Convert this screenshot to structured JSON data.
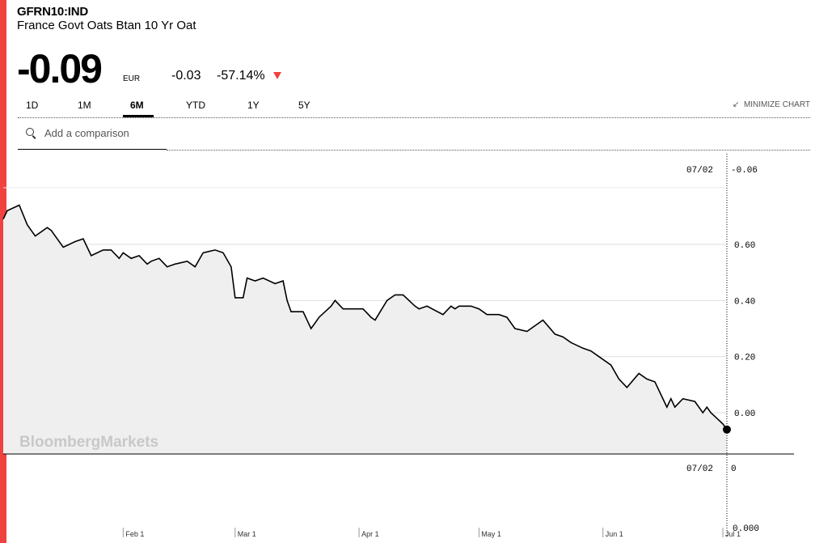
{
  "header": {
    "ticker": "GFRN10:IND",
    "name": "France Govt Oats Btan 10 Yr Oat",
    "price": "-0.09",
    "currency": "EUR",
    "change": "-0.03",
    "change_pct": "-57.14%"
  },
  "tabs": [
    {
      "label": "1D",
      "active": false
    },
    {
      "label": "1M",
      "active": false
    },
    {
      "label": "6M",
      "active": true
    },
    {
      "label": "YTD",
      "active": false
    },
    {
      "label": "1Y",
      "active": false
    },
    {
      "label": "5Y",
      "active": false
    }
  ],
  "minimize_label": "MINIMIZE CHART",
  "compare_placeholder": "Add a comparison",
  "watermark": "BloombergMarkets",
  "colors": {
    "accent": "#f0423f",
    "area_fill": "#efefef",
    "line": "#000000"
  },
  "chart_data": {
    "type": "area",
    "ylim": [
      -0.1,
      0.8
    ],
    "yticks": [
      "0.60",
      "0.40",
      "0.20",
      "0.00"
    ],
    "xticks": [
      "Feb 1",
      "Mar 1",
      "Apr 1",
      "May 1",
      "Jun 1",
      "Jul 1"
    ],
    "crosshair": {
      "date_label": "07/02",
      "value_label": "-0.06"
    },
    "volume": {
      "date_label": "07/02",
      "value_label": "0",
      "axis_label": "0.000"
    },
    "series": [
      {
        "x": [
          "Jan 2",
          "Jan 3",
          "Jan 6",
          "Jan 8",
          "Jan 9",
          "Jan 10",
          "Jan 13",
          "Jan 14",
          "Jan 17",
          "Jan 20",
          "Jan 22",
          "Jan 24",
          "Jan 27",
          "Jan 29",
          "Jan 31",
          "Feb 1",
          "Feb 3",
          "Feb 5",
          "Feb 7",
          "Feb 8",
          "Feb 10",
          "Feb 12",
          "Feb 14",
          "Feb 17",
          "Feb 19",
          "Feb 21",
          "Feb 24",
          "Feb 26",
          "Feb 28",
          "Mar 1",
          "Mar 3",
          "Mar 4",
          "Mar 6",
          "Mar 8",
          "Mar 11",
          "Mar 13",
          "Mar 14",
          "Mar 15",
          "Mar 18",
          "Mar 20",
          "Mar 21",
          "Mar 22",
          "Mar 25",
          "Mar 26",
          "Mar 28",
          "Apr 1",
          "Apr 2",
          "Apr 4",
          "Apr 5",
          "Apr 8",
          "Apr 10",
          "Apr 12",
          "Apr 15",
          "Apr 16",
          "Apr 18",
          "Apr 22",
          "Apr 24",
          "Apr 25",
          "Apr 26",
          "Apr 29",
          "May 1",
          "May 3",
          "May 6",
          "May 8",
          "May 10",
          "May 13",
          "May 15",
          "May 17",
          "May 20",
          "May 22",
          "May 24",
          "May 27",
          "May 29",
          "May 31",
          "Jun 3",
          "Jun 5",
          "Jun 7",
          "Jun 10",
          "Jun 12",
          "Jun 14",
          "Jun 17",
          "Jun 18",
          "Jun 19",
          "Jun 21",
          "Jun 24",
          "Jun 26",
          "Jun 27",
          "Jun 28",
          "Jul 1",
          "Jul 2"
        ],
        "y": [
          0.69,
          0.72,
          0.74,
          0.67,
          0.65,
          0.63,
          0.66,
          0.65,
          0.59,
          0.61,
          0.62,
          0.56,
          0.58,
          0.58,
          0.55,
          0.57,
          0.55,
          0.56,
          0.53,
          0.54,
          0.55,
          0.52,
          0.53,
          0.54,
          0.52,
          0.57,
          0.58,
          0.57,
          0.52,
          0.41,
          0.41,
          0.48,
          0.47,
          0.48,
          0.46,
          0.47,
          0.4,
          0.36,
          0.36,
          0.3,
          0.32,
          0.34,
          0.38,
          0.4,
          0.37,
          0.37,
          0.37,
          0.34,
          0.33,
          0.4,
          0.42,
          0.42,
          0.38,
          0.37,
          0.38,
          0.35,
          0.38,
          0.37,
          0.38,
          0.38,
          0.37,
          0.35,
          0.35,
          0.34,
          0.3,
          0.29,
          0.31,
          0.33,
          0.28,
          0.27,
          0.25,
          0.23,
          0.22,
          0.2,
          0.17,
          0.12,
          0.09,
          0.14,
          0.12,
          0.11,
          0.02,
          0.05,
          0.02,
          0.05,
          0.04,
          0.0,
          0.02,
          0.0,
          -0.04,
          -0.06
        ]
      }
    ]
  }
}
